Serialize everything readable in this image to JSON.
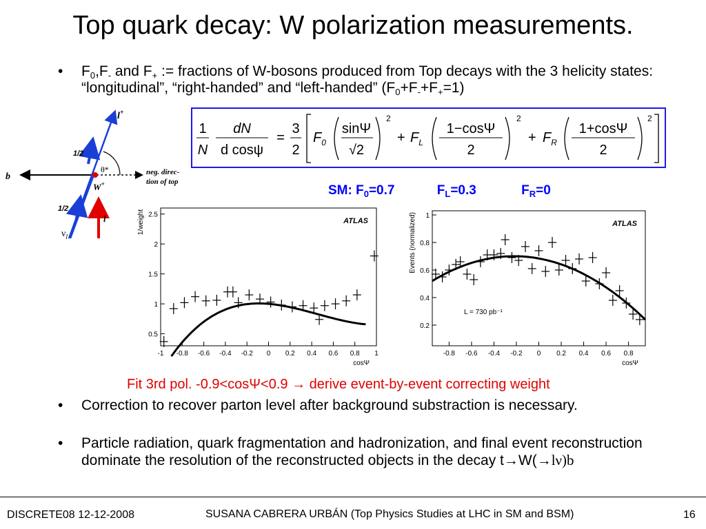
{
  "title": "Top quark decay:  W polarization measurements.",
  "bullets": [
    {
      "parts": [
        "F",
        "0",
        ",F",
        "-",
        " and F",
        "+",
        " := fractions of W-bosons produced from Top decays with the 3 helicity states: “longitudinal”, “right-handed” and “left-handed” (F",
        "0",
        "+F",
        "-",
        "+F",
        "+",
        "=1)"
      ]
    },
    {
      "text": "Correction to recover parton level after background substraction is necessary."
    },
    {
      "text_main": "Particle radiation, quark fragmentation and hadronization, and final event reconstruction dominate the resolution of the reconstructed objects in the decay t",
      "text_w": "W(",
      "text_lnu": "lν)b"
    }
  ],
  "bullet_symbol": "•",
  "arrow_symbol": "→",
  "formula": {
    "lhs_num_1": "1",
    "lhs_den_1": "N",
    "lhs_num_2": "dN",
    "lhs_den_2": "d cosψ",
    "eq": "=",
    "coef_num": "3",
    "coef_den": "2",
    "term0_f": "F",
    "term0_sub": "0",
    "term0_num": "sinΨ",
    "term0_den": "√2",
    "exp": "2",
    "termL_f": "F",
    "termL_sub": "L",
    "termL_num": "1−cosΨ",
    "termL_den": "2",
    "termR_f": "F",
    "termR_sub": "R",
    "termR_num": "1+cosΨ",
    "termR_den": "2",
    "plus": "+"
  },
  "sm": {
    "label": "SM: F",
    "f0_sub": "0",
    "f0_val": "=0.7",
    "fl": "F",
    "fl_sub": "L",
    "fl_val": "=0.3",
    "fr": "F",
    "fr_sub": "R",
    "fr_val": "=0"
  },
  "fit_note": {
    "text_a": "Fit 3rd pol. -0.9<cosΨ<0.9 ",
    "arrow": "→",
    "text_b": " derive event-by-event correcting weight"
  },
  "diagram": {
    "b": "b",
    "l_plus": "l",
    "l_plus_sup": "+",
    "half_top": "1/2",
    "half_bottom": "1/2",
    "theta": "θ*",
    "neg_dir_1": "neg. direc-",
    "neg_dir_2": "tion of top",
    "w_plus": "W",
    "w_sup": "+",
    "nu": "ν",
    "nu_sub": "l",
    "l": "l"
  },
  "chart_data": [
    {
      "type": "scatter",
      "title": "",
      "label": "ATLAS",
      "xlabel": "cosΨ",
      "ylabel": "1/weight",
      "xlim": [
        -1,
        1
      ],
      "ylim": [
        0.3,
        2.6
      ],
      "xticks": [
        "-1",
        "-0.8",
        "-0.6",
        "-0.4",
        "-0.2",
        "0",
        "0.2",
        "0.4",
        "0.6",
        "0.8",
        "1"
      ],
      "yticks": [
        "0.5",
        "1",
        "1.5",
        "2",
        "2.5"
      ],
      "x": [
        -0.97,
        -0.88,
        -0.78,
        -0.68,
        -0.58,
        -0.48,
        -0.38,
        -0.33,
        -0.28,
        -0.18,
        -0.08,
        0.02,
        0.12,
        0.22,
        0.32,
        0.42,
        0.47,
        0.52,
        0.62,
        0.72,
        0.82,
        0.98
      ],
      "y": [
        0.37,
        0.92,
        1.02,
        1.12,
        1.05,
        1.06,
        1.2,
        1.2,
        1.02,
        1.15,
        1.08,
        1.03,
        0.98,
        0.95,
        0.97,
        0.93,
        0.74,
        0.97,
        1.0,
        1.05,
        1.15,
        1.8
      ],
      "fit_range": [
        -0.9,
        0.9
      ],
      "fit_poly": [
        1.0,
        -0.15,
        -0.75,
        0.55
      ]
    },
    {
      "type": "scatter",
      "title": "",
      "label": "ATLAS",
      "xlabel": "cosΨ",
      "ylabel": "Events (normalized)",
      "annotation": "L = 730 pb⁻¹",
      "xlim": [
        -0.95,
        0.95
      ],
      "ylim": [
        0.05,
        1.03
      ],
      "xticks": [
        "-0.8",
        "-0.6",
        "-0.4",
        "-0.2",
        "0",
        "0.2",
        "0.4",
        "0.6",
        "0.8"
      ],
      "yticks": [
        "0.2",
        "0.4",
        "0.6",
        "0.8",
        "1"
      ],
      "x": [
        -0.92,
        -0.86,
        -0.8,
        -0.74,
        -0.7,
        -0.64,
        -0.58,
        -0.52,
        -0.46,
        -0.4,
        -0.34,
        -0.3,
        -0.24,
        -0.18,
        -0.12,
        -0.06,
        0.0,
        0.06,
        0.12,
        0.18,
        0.24,
        0.3,
        0.36,
        0.42,
        0.48,
        0.54,
        0.6,
        0.66,
        0.72,
        0.78,
        0.84,
        0.9
      ],
      "y": [
        0.57,
        0.55,
        0.6,
        0.64,
        0.66,
        0.57,
        0.53,
        0.66,
        0.71,
        0.71,
        0.72,
        0.82,
        0.69,
        0.67,
        0.77,
        0.61,
        0.74,
        0.59,
        0.8,
        0.6,
        0.67,
        0.61,
        0.68,
        0.52,
        0.69,
        0.5,
        0.58,
        0.38,
        0.45,
        0.36,
        0.28,
        0.24
      ],
      "fit_curve": {
        "peak_x": -0.22,
        "peak_y": 0.7,
        "end_y": 0.24
      }
    }
  ],
  "footer": {
    "left": "DISCRETE08 12-12-2008",
    "center": "SUSANA CABRERA URBÁN (Top Physics Studies at LHC in SM and BSM)",
    "right": "16"
  }
}
